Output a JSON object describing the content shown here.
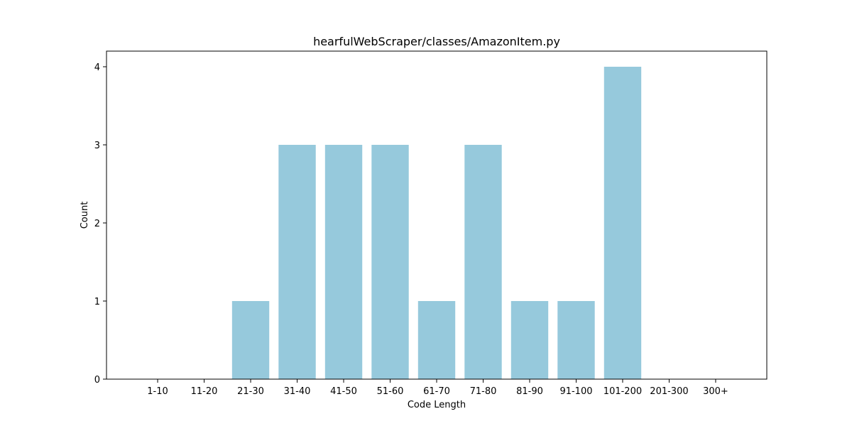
{
  "chart_data": {
    "type": "bar",
    "title": "hearfulWebScraper/classes/AmazonItem.py",
    "xlabel": "Code Length",
    "ylabel": "Count",
    "categories": [
      "1-10",
      "11-20",
      "21-30",
      "31-40",
      "41-50",
      "51-60",
      "61-70",
      "71-80",
      "81-90",
      "91-100",
      "101-200",
      "201-300",
      "300+"
    ],
    "values": [
      0,
      0,
      1,
      3,
      3,
      3,
      1,
      3,
      1,
      1,
      4,
      0,
      0
    ],
    "yticks": [
      0,
      1,
      2,
      3,
      4
    ],
    "ylim": [
      0,
      4.2
    ],
    "grid": false,
    "bar_color": "#96c9dc"
  }
}
